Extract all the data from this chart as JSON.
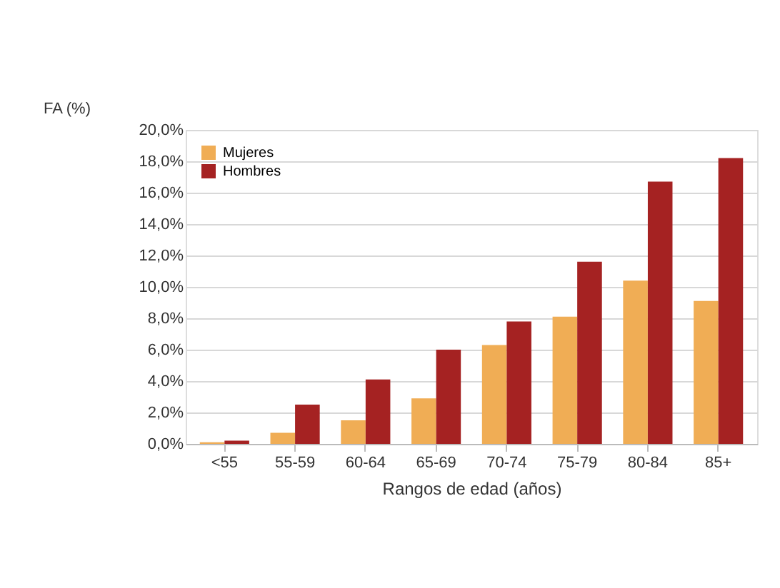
{
  "chart_data": {
    "type": "bar",
    "xlabel": "Rangos de edad (años)",
    "ylabel": "FA (%)",
    "categories": [
      "<55",
      "55-59",
      "60-64",
      "65-69",
      "70-74",
      "75-79",
      "80-84",
      "85+"
    ],
    "series": [
      {
        "name": "Mujeres",
        "color": "#f0ad55",
        "values": [
          0.1,
          0.7,
          1.5,
          2.9,
          6.3,
          8.1,
          10.4,
          9.1
        ]
      },
      {
        "name": "Hombres",
        "color": "#a52222",
        "values": [
          0.2,
          2.5,
          4.1,
          6.0,
          7.8,
          11.6,
          16.7,
          18.2
        ]
      }
    ],
    "ylim": [
      0,
      20
    ],
    "yticks": [
      {
        "value": 0,
        "label": "0,0%"
      },
      {
        "value": 2,
        "label": "2,0%"
      },
      {
        "value": 4,
        "label": "4,0%"
      },
      {
        "value": 6,
        "label": "6,0%"
      },
      {
        "value": 8,
        "label": "8,0%"
      },
      {
        "value": 10,
        "label": "10,0%"
      },
      {
        "value": 12,
        "label": "12,0%"
      },
      {
        "value": 14,
        "label": "14,0%"
      },
      {
        "value": 16,
        "label": "16,0%"
      },
      {
        "value": 18,
        "label": "18,0%"
      },
      {
        "value": 20,
        "label": "20,0%"
      }
    ],
    "grid": "y",
    "legend": "top left"
  }
}
